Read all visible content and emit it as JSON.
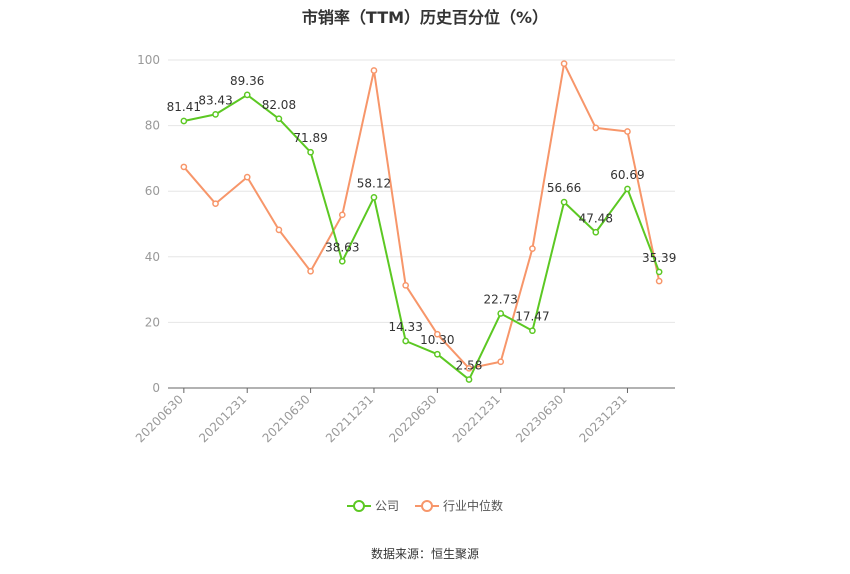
{
  "colors": {
    "company": "#5cc823",
    "industry": "#f7966a",
    "grid": "#e6e6e6",
    "axis": "#666666"
  },
  "legend": {
    "company_label": "公司",
    "industry_label": "行业中位数"
  },
  "source": "数据来源：恒生聚源",
  "chart_data": {
    "type": "line",
    "title": "市销率（TTM）历史百分位（%）",
    "ylim": [
      0,
      100
    ],
    "yticks": [
      0,
      20,
      40,
      60,
      80,
      100
    ],
    "x": [
      "20200630",
      "20200930",
      "20201231",
      "20210331",
      "20210630",
      "20210930",
      "20211231",
      "20220331",
      "20220630",
      "20220930",
      "20221231",
      "20230331",
      "20230630",
      "20230930",
      "20231231",
      "20240331"
    ],
    "xtick_labels": [
      "20200630",
      "20201231",
      "20210630",
      "20211231",
      "20220630",
      "20221231",
      "20230630",
      "20231231"
    ],
    "series": [
      {
        "name": "公司",
        "values": [
          81.41,
          83.43,
          89.36,
          82.08,
          71.89,
          38.63,
          58.12,
          14.33,
          10.3,
          2.58,
          22.73,
          17.47,
          56.66,
          47.48,
          60.69,
          35.39
        ],
        "labels": [
          "81.41",
          "83.43",
          "89.36",
          "82.08",
          "71.89",
          "38.63",
          "58.12",
          "14.33",
          "10.30",
          "2.58",
          "22.73",
          "17.47",
          "56.66",
          "47.48",
          "60.69",
          "35.39"
        ]
      },
      {
        "name": "行业中位数",
        "values": [
          67.4,
          56.2,
          64.3,
          48.2,
          35.6,
          52.8,
          96.8,
          31.3,
          16.4,
          6.0,
          8.0,
          42.5,
          98.9,
          79.3,
          78.2,
          32.6
        ]
      }
    ]
  }
}
